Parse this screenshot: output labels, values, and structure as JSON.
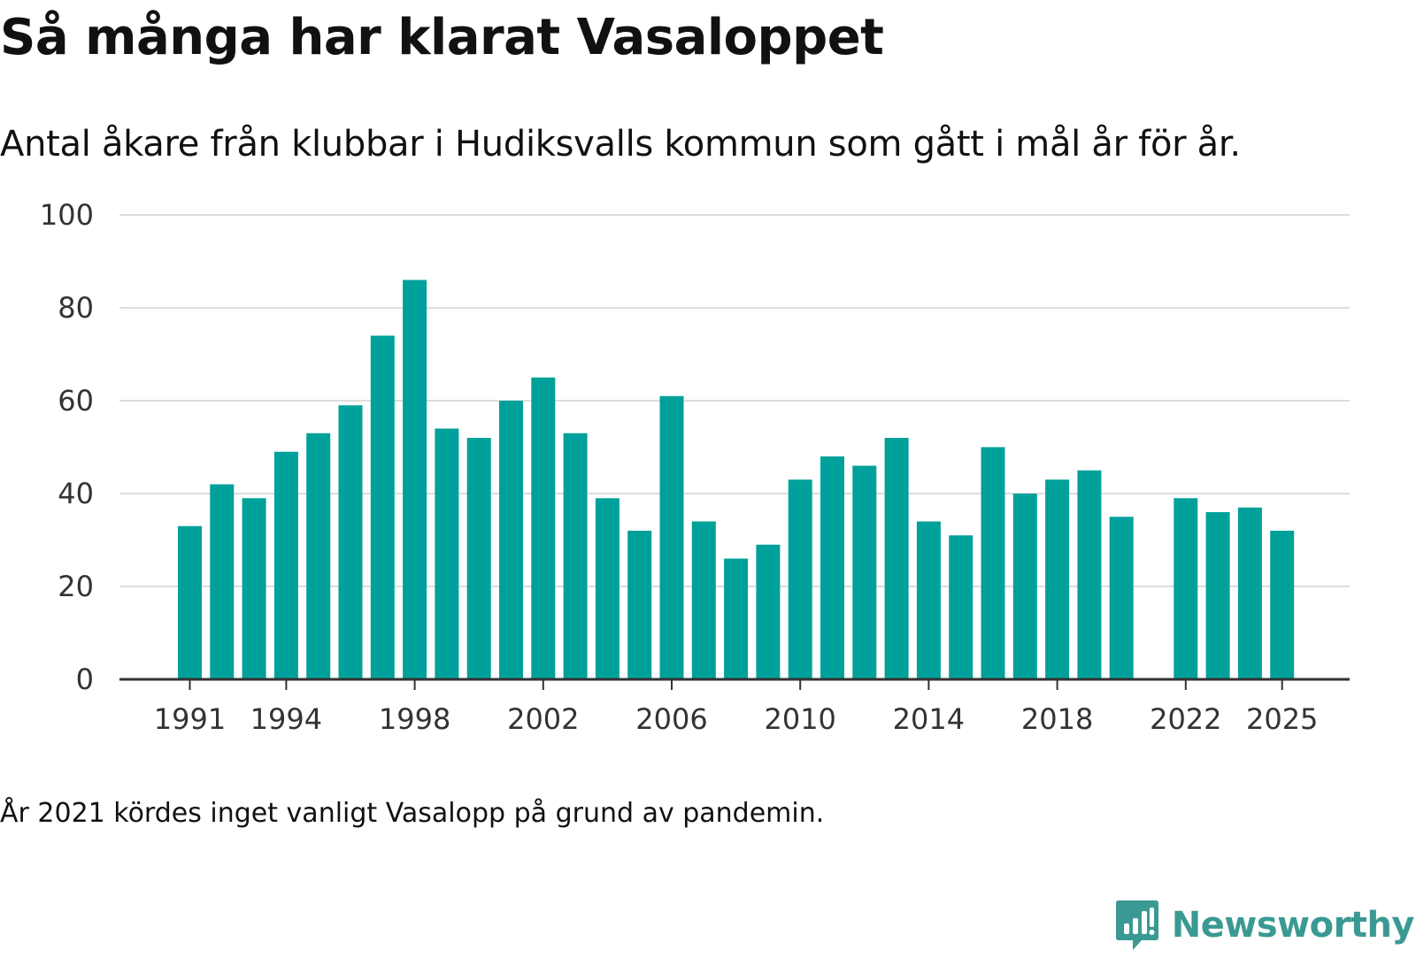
{
  "title": "Så många har klarat Vasaloppet",
  "subtitle": "Antal åkare från klubbar i Hudiksvalls kommun som gått i mål år för år.",
  "note": "År 2021 kördes inget vanligt Vasalopp på grund av pandemin.",
  "brand": {
    "name": "Newsworthy",
    "color": "#3a9a93"
  },
  "chart_data": {
    "type": "bar",
    "title": "Så många har klarat Vasaloppet",
    "xlabel": "",
    "ylabel": "",
    "bar_color": "#00a19a",
    "ylim": [
      0,
      100
    ],
    "yticks": [
      0,
      20,
      40,
      60,
      80,
      100
    ],
    "xtick_labels": [
      "1991",
      "1994",
      "1998",
      "2002",
      "2006",
      "2010",
      "2014",
      "2018",
      "2022",
      "2025"
    ],
    "categories": [
      "1991",
      "1992",
      "1993",
      "1994",
      "1995",
      "1996",
      "1997",
      "1998",
      "1999",
      "2000",
      "2001",
      "2002",
      "2003",
      "2004",
      "2005",
      "2006",
      "2007",
      "2008",
      "2009",
      "2010",
      "2011",
      "2012",
      "2013",
      "2014",
      "2015",
      "2016",
      "2017",
      "2018",
      "2019",
      "2020",
      "2021",
      "2022",
      "2023",
      "2024",
      "2025"
    ],
    "values": [
      33,
      42,
      39,
      49,
      53,
      59,
      74,
      86,
      54,
      52,
      60,
      65,
      53,
      39,
      32,
      61,
      34,
      26,
      29,
      43,
      48,
      46,
      52,
      34,
      31,
      50,
      40,
      43,
      45,
      35,
      null,
      39,
      36,
      37,
      32
    ]
  }
}
